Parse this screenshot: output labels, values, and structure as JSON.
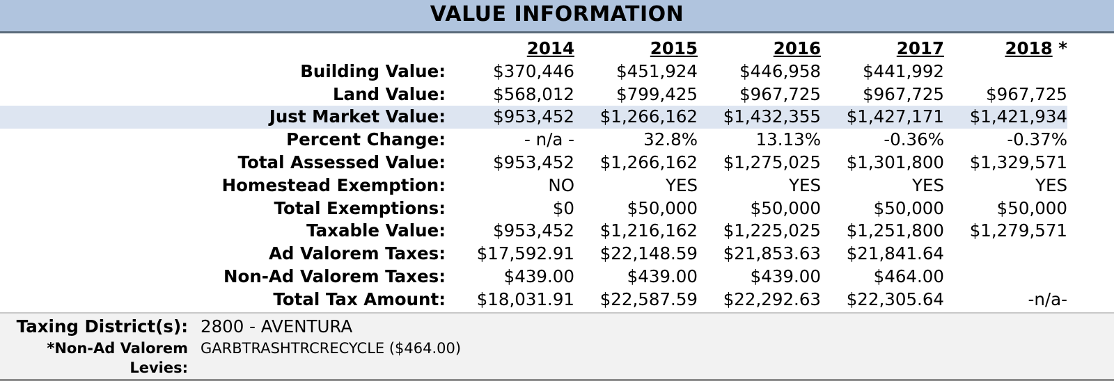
{
  "section_title": "VALUE INFORMATION",
  "years": [
    {
      "label": "2014",
      "mark": ""
    },
    {
      "label": "2015",
      "mark": ""
    },
    {
      "label": "2016",
      "mark": ""
    },
    {
      "label": "2017",
      "mark": ""
    },
    {
      "label": "2018",
      "mark": " *"
    }
  ],
  "rows": [
    {
      "label": "Building Value:",
      "values": [
        "$370,446",
        "$451,924",
        "$446,958",
        "$441,992",
        ""
      ]
    },
    {
      "label": "Land Value:",
      "values": [
        "$568,012",
        "$799,425",
        "$967,725",
        "$967,725",
        "$967,725"
      ]
    },
    {
      "label": "Just Market Value:",
      "values": [
        "$953,452",
        "$1,266,162",
        "$1,432,355",
        "$1,427,171",
        "$1,421,934"
      ],
      "highlight": true
    },
    {
      "label": "Percent Change:",
      "values": [
        "- n/a -",
        "32.8%",
        "13.13%",
        "-0.36%",
        "-0.37%"
      ]
    },
    {
      "label": "Total Assessed Value:",
      "values": [
        "$953,452",
        "$1,266,162",
        "$1,275,025",
        "$1,301,800",
        "$1,329,571"
      ]
    },
    {
      "label": "Homestead Exemption:",
      "values": [
        "NO",
        "YES",
        "YES",
        "YES",
        "YES"
      ]
    },
    {
      "label": "Total Exemptions:",
      "values": [
        "$0",
        "$50,000",
        "$50,000",
        "$50,000",
        "$50,000"
      ]
    },
    {
      "label": "Taxable Value:",
      "values": [
        "$953,452",
        "$1,216,162",
        "$1,225,025",
        "$1,251,800",
        "$1,279,571"
      ]
    },
    {
      "label": "Ad Valorem Taxes:",
      "values": [
        "$17,592.91",
        "$22,148.59",
        "$21,853.63",
        "$21,841.64",
        ""
      ]
    },
    {
      "label": "Non-Ad Valorem Taxes:",
      "values": [
        "$439.00",
        "$439.00",
        "$439.00",
        "$464.00",
        ""
      ]
    },
    {
      "label": "Total Tax Amount:",
      "values": [
        "$18,031.91",
        "$22,587.59",
        "$22,292.63",
        "$22,305.64",
        "-n/a-"
      ]
    }
  ],
  "footer": {
    "taxing_district_label": "Taxing District(s):",
    "taxing_district_value": "2800 - AVENTURA",
    "non_ad_valorem_label_line1": "*Non-Ad Valorem",
    "non_ad_valorem_label_line2": "Levies:",
    "non_ad_valorem_value": "GARBTRASHTRCRECYCLE ($464.00)"
  },
  "colors": {
    "title_bar": "#b0c4de",
    "highlight_row": "#dde5f1",
    "footer_bg": "#f2f2f2"
  }
}
